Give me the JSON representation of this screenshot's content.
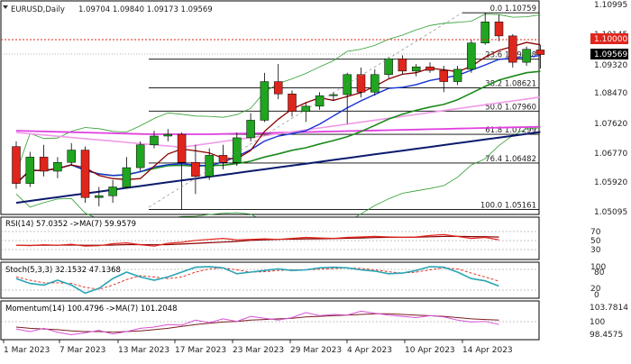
{
  "header": {
    "symbol": "EURUSD,Daily",
    "ohlc": "1.09704 1.09840 1.09173 1.09569"
  },
  "price_axis": {
    "labels": [
      "1.10995",
      "1.10145",
      "1.09320",
      "1.08470",
      "1.07620",
      "1.06770",
      "1.05920",
      "1.05095"
    ],
    "current_price": "1.09569",
    "resistance_price": "1.10000",
    "current_color": "#000000",
    "resistance_color": "#e0251c"
  },
  "fib_levels": [
    {
      "label": "0.0 1.10759"
    },
    {
      "label": "23.6 1.09438"
    },
    {
      "label": "38.2 1.08621"
    },
    {
      "label": "50.0 1.07960"
    },
    {
      "label": "61.8 1.07299"
    },
    {
      "label": "76.4 1.06482"
    },
    {
      "label": "100.0 1.05161"
    }
  ],
  "date_axis": [
    "1 Mar 2023",
    "7 Mar 2023",
    "13 Mar 2023",
    "17 Mar 2023",
    "23 Mar 2023",
    "29 Mar 2023",
    "4 Apr 2023",
    "10 Apr 2023",
    "14 Apr 2023"
  ],
  "rsi": {
    "title": "RSI(14) 57.0352  ->MA(7) 59.9579",
    "levels": [
      "70",
      "50",
      "30"
    ],
    "values": [
      46,
      45,
      47,
      46,
      48,
      44,
      45,
      49,
      51,
      47,
      44,
      50,
      52,
      56,
      58,
      60,
      57,
      58,
      59,
      58,
      60,
      62,
      61,
      60,
      62,
      63,
      64,
      63,
      62,
      63,
      66,
      68,
      64,
      60,
      62,
      57
    ]
  },
  "stoch": {
    "title": "Stoch(5,3,3) 32.1532 47.1368",
    "levels": [
      "100",
      "80",
      "20",
      "0"
    ],
    "main": [
      55,
      40,
      35,
      50,
      35,
      10,
      25,
      55,
      75,
      60,
      50,
      60,
      75,
      90,
      92,
      88,
      70,
      75,
      80,
      85,
      80,
      82,
      88,
      90,
      88,
      82,
      78,
      70,
      72,
      80,
      92,
      90,
      75,
      55,
      48,
      32
    ],
    "signal": [
      60,
      50,
      42,
      42,
      40,
      28,
      22,
      35,
      52,
      64,
      60,
      55,
      60,
      75,
      85,
      88,
      82,
      75,
      76,
      80,
      82,
      82,
      84,
      86,
      88,
      86,
      82,
      76,
      72,
      75,
      82,
      88,
      85,
      72,
      60,
      47
    ]
  },
  "momentum": {
    "title": "Momentum(14) 100.4796  ->MA(7) 101.2048",
    "levels": [
      "103.7814",
      "100",
      "98.4575"
    ],
    "main": [
      99.8,
      99.4,
      99.9,
      99.3,
      98.9,
      99.2,
      99.6,
      99.0,
      99.4,
      99.9,
      100.1,
      100.5,
      100.4,
      101.2,
      100.8,
      101.4,
      101.0,
      101.8,
      101.5,
      101.2,
      101.6,
      102.4,
      101.9,
      102.1,
      102.0,
      102.6,
      102.3,
      102.0,
      101.8,
      101.6,
      101.9,
      101.7,
      101.2,
      100.9,
      101.0,
      100.5
    ],
    "signal": [
      100.1,
      99.9,
      99.8,
      99.7,
      99.5,
      99.4,
      99.4,
      99.3,
      99.4,
      99.5,
      99.7,
      99.9,
      100.2,
      100.5,
      100.7,
      100.9,
      101.0,
      101.2,
      101.3,
      101.4,
      101.5,
      101.7,
      101.8,
      101.9,
      102.0,
      102.1,
      102.2,
      102.2,
      102.1,
      102.0,
      101.9,
      101.8,
      101.6,
      101.4,
      101.3,
      101.2
    ]
  },
  "chart_data": {
    "type": "candlestick",
    "candles": [
      {
        "o": 1.0695,
        "h": 1.071,
        "l": 1.0575,
        "c": 1.059
      },
      {
        "o": 1.059,
        "h": 1.068,
        "l": 1.058,
        "c": 1.0665
      },
      {
        "o": 1.0665,
        "h": 1.07,
        "l": 1.061,
        "c": 1.0625
      },
      {
        "o": 1.0625,
        "h": 1.0665,
        "l": 1.0605,
        "c": 1.065
      },
      {
        "o": 1.065,
        "h": 1.0705,
        "l": 1.064,
        "c": 1.0685
      },
      {
        "o": 1.0685,
        "h": 1.0695,
        "l": 1.0535,
        "c": 1.055
      },
      {
        "o": 1.055,
        "h": 1.058,
        "l": 1.0525,
        "c": 1.0555
      },
      {
        "o": 1.0555,
        "h": 1.06,
        "l": 1.0535,
        "c": 1.058
      },
      {
        "o": 1.058,
        "h": 1.0665,
        "l": 1.0575,
        "c": 1.0635
      },
      {
        "o": 1.0635,
        "h": 1.071,
        "l": 1.0625,
        "c": 1.07
      },
      {
        "o": 1.07,
        "h": 1.074,
        "l": 1.069,
        "c": 1.0725
      },
      {
        "o": 1.0725,
        "h": 1.0745,
        "l": 1.071,
        "c": 1.073
      },
      {
        "o": 1.073,
        "h": 1.0735,
        "l": 1.0515,
        "c": 1.065
      },
      {
        "o": 1.065,
        "h": 1.07,
        "l": 1.056,
        "c": 1.061
      },
      {
        "o": 1.061,
        "h": 1.069,
        "l": 1.06,
        "c": 1.067
      },
      {
        "o": 1.067,
        "h": 1.07,
        "l": 1.063,
        "c": 1.065
      },
      {
        "o": 1.065,
        "h": 1.0735,
        "l": 1.064,
        "c": 1.072
      },
      {
        "o": 1.072,
        "h": 1.079,
        "l": 1.071,
        "c": 1.077
      },
      {
        "o": 1.077,
        "h": 1.0905,
        "l": 1.0765,
        "c": 1.088
      },
      {
        "o": 1.088,
        "h": 1.093,
        "l": 1.083,
        "c": 1.0845
      },
      {
        "o": 1.0845,
        "h": 1.0855,
        "l": 1.078,
        "c": 1.0795
      },
      {
        "o": 1.0795,
        "h": 1.082,
        "l": 1.0765,
        "c": 1.081
      },
      {
        "o": 1.081,
        "h": 1.085,
        "l": 1.08,
        "c": 1.084
      },
      {
        "o": 1.084,
        "h": 1.085,
        "l": 1.0825,
        "c": 1.0843
      },
      {
        "o": 1.0843,
        "h": 1.0905,
        "l": 1.076,
        "c": 1.09
      },
      {
        "o": 1.09,
        "h": 1.092,
        "l": 1.0835,
        "c": 1.085
      },
      {
        "o": 1.085,
        "h": 1.0915,
        "l": 1.084,
        "c": 1.09
      },
      {
        "o": 1.09,
        "h": 1.095,
        "l": 1.089,
        "c": 1.0945
      },
      {
        "o": 1.0945,
        "h": 1.0955,
        "l": 1.09,
        "c": 1.091
      },
      {
        "o": 1.091,
        "h": 1.093,
        "l": 1.0895,
        "c": 1.0922
      },
      {
        "o": 1.0922,
        "h": 1.0935,
        "l": 1.0905,
        "c": 1.0912
      },
      {
        "o": 1.0912,
        "h": 1.0925,
        "l": 1.085,
        "c": 1.088
      },
      {
        "o": 1.088,
        "h": 1.0925,
        "l": 1.087,
        "c": 1.0915
      },
      {
        "o": 1.0915,
        "h": 1.1,
        "l": 1.0905,
        "c": 1.099
      },
      {
        "o": 1.099,
        "h": 1.1076,
        "l": 1.0985,
        "c": 1.105
      },
      {
        "o": 1.105,
        "h": 1.107,
        "l": 1.0995,
        "c": 1.101
      },
      {
        "o": 1.101,
        "h": 1.1015,
        "l": 1.092,
        "c": 1.0935
      },
      {
        "o": 1.0935,
        "h": 1.098,
        "l": 1.0925,
        "c": 1.0972
      },
      {
        "o": 1.097,
        "h": 1.0984,
        "l": 1.0917,
        "c": 1.0957
      }
    ],
    "bull_color": "#1fa51f",
    "bear_color": "#e0251c"
  }
}
